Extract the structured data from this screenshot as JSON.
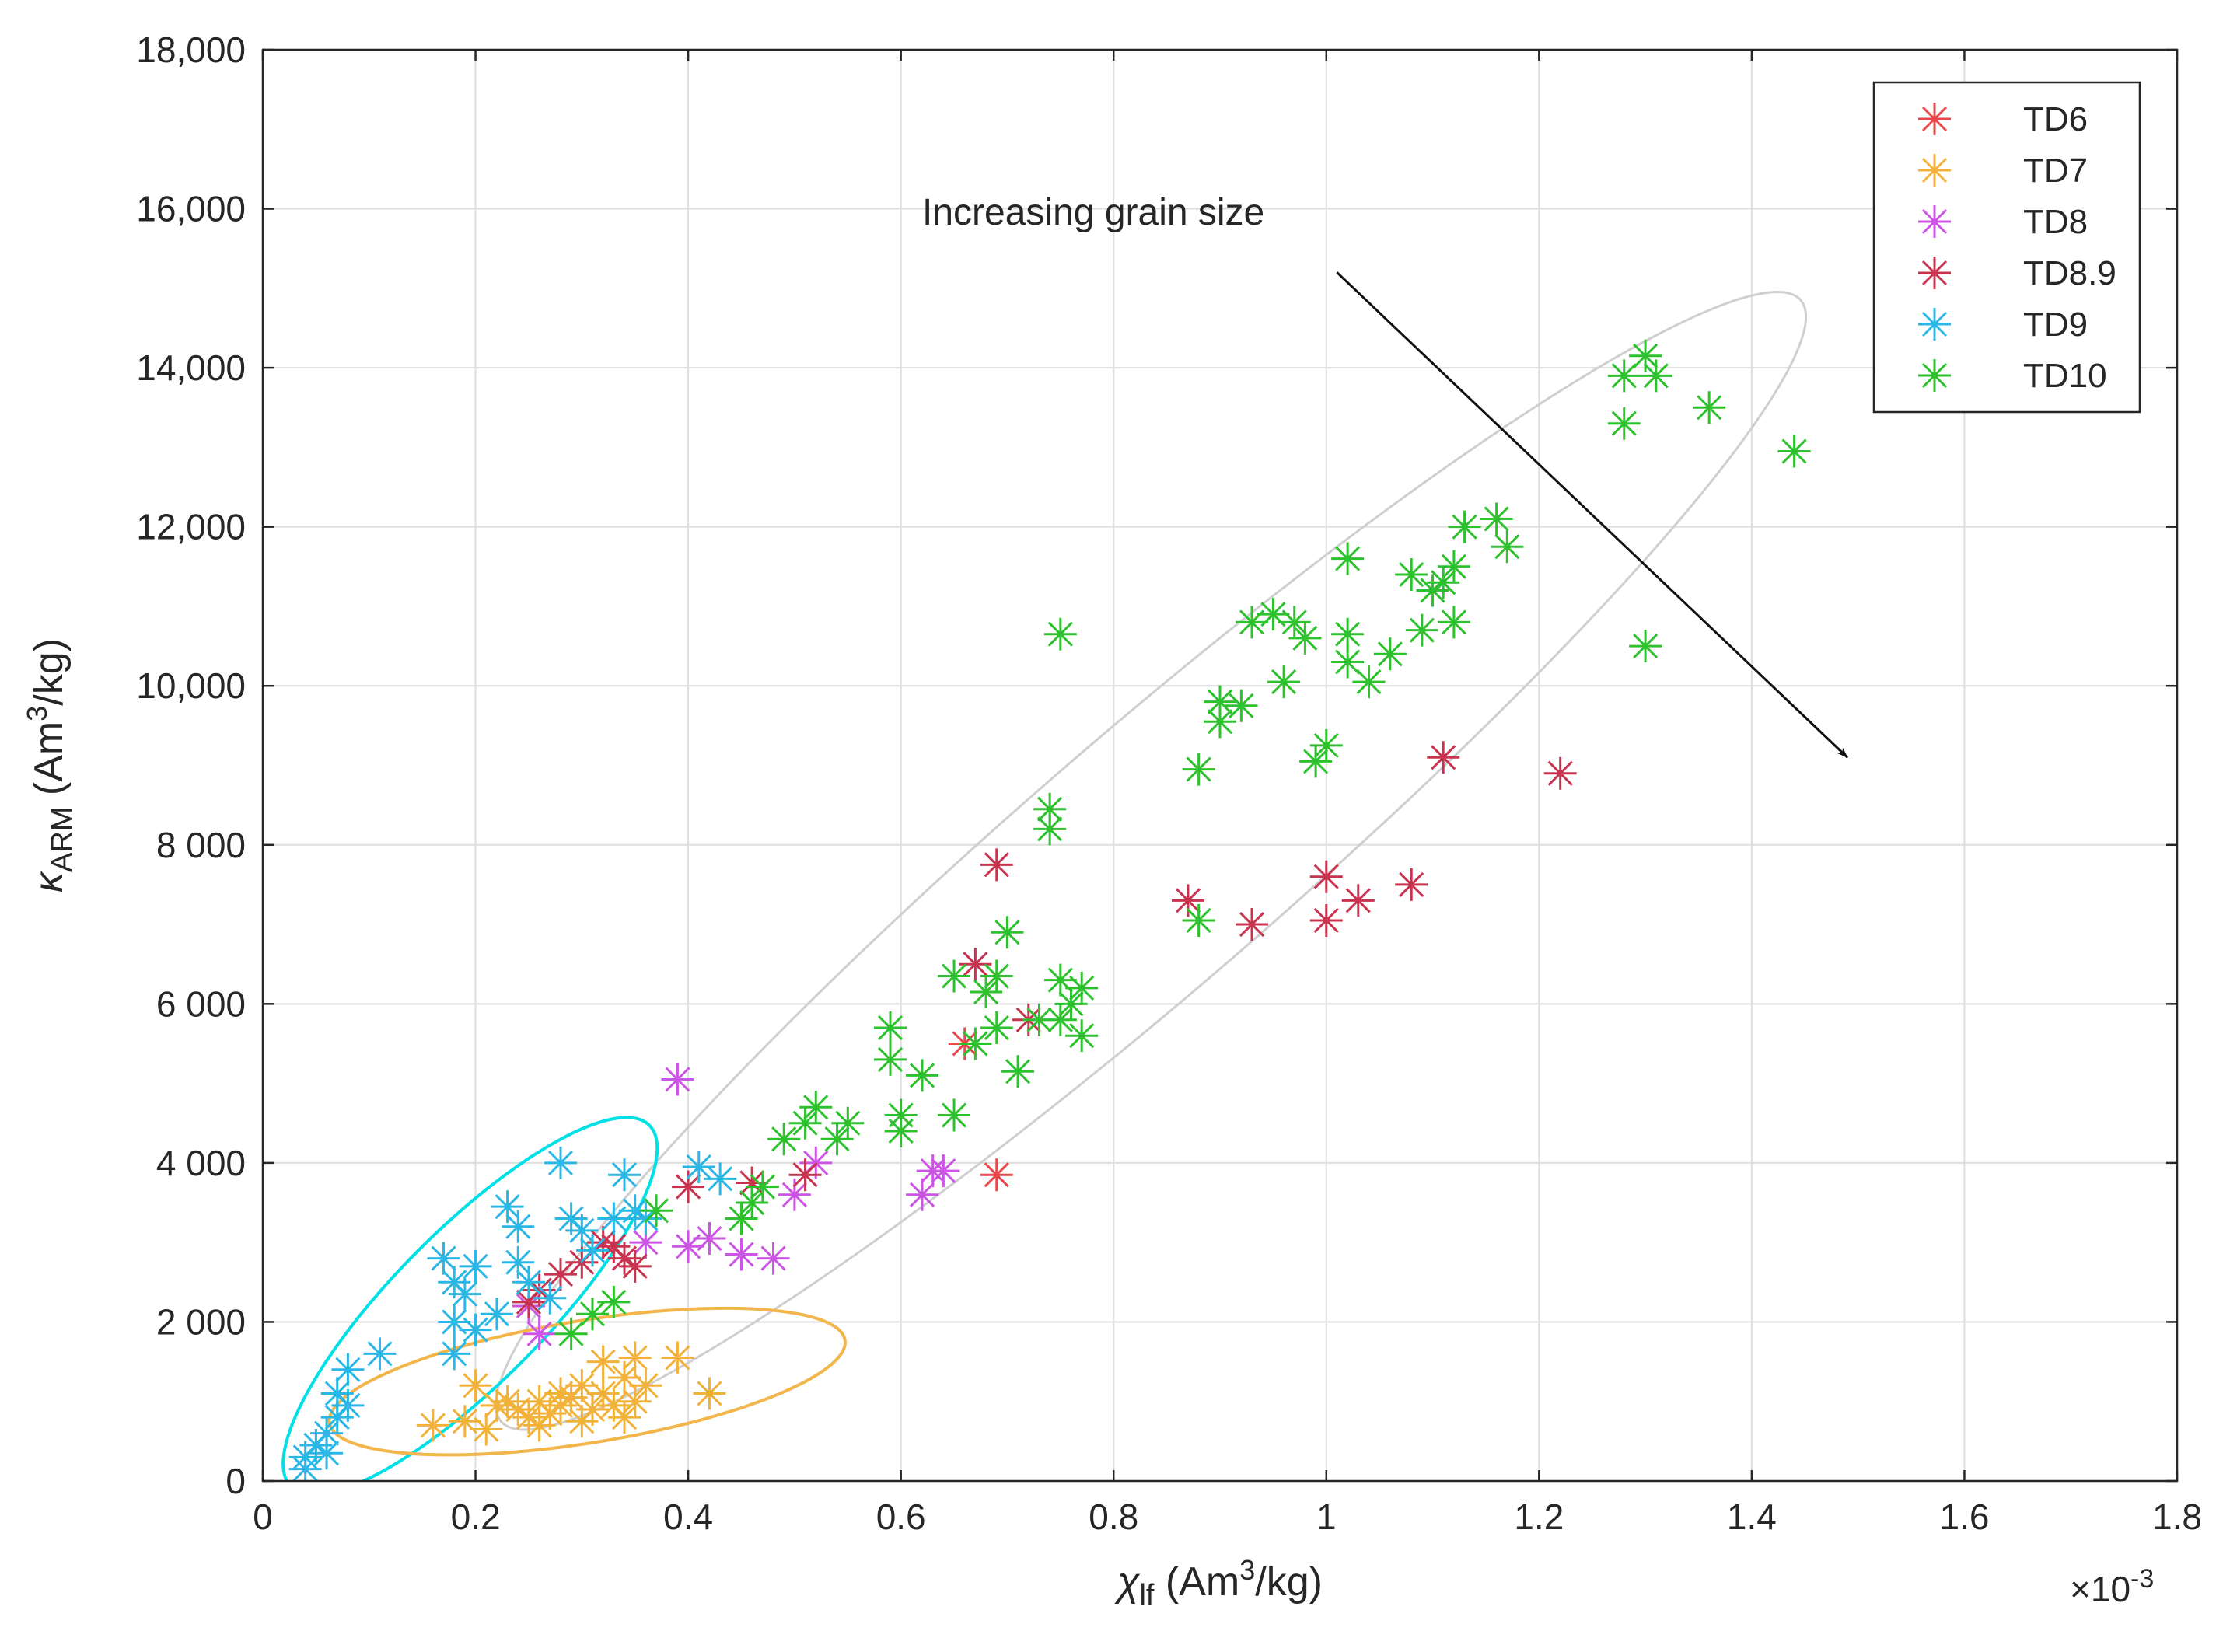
{
  "chart_data": {
    "type": "scatter",
    "title": "",
    "xlabel": {
      "symbol": "χ",
      "sub": "lf",
      "unit_pre": " (Am",
      "unit_sup": "3",
      "unit_post": "/kg)"
    },
    "ylabel": {
      "symbol": "κ",
      "sub": "ARM",
      "unit_pre": " (Am",
      "unit_sup": "3",
      "unit_post": "/kg)"
    },
    "x_exponent_label": {
      "times": "×",
      "base": "10",
      "exp": "-3"
    },
    "xlim": [
      0,
      1.8
    ],
    "ylim": [
      0,
      18000
    ],
    "x_scale": 0.001,
    "grid": true,
    "legend_position": "top-right",
    "xticks": [
      0,
      0.2,
      0.4,
      0.6,
      0.8,
      1,
      1.2,
      1.4,
      1.6,
      1.8
    ],
    "xtick_labels": [
      "0",
      "0.2",
      "0.4",
      "0.6",
      "0.8",
      "1",
      "1.2",
      "1.4",
      "1.6",
      "1.8"
    ],
    "yticks": [
      0,
      2000,
      4000,
      6000,
      8000,
      10000,
      12000,
      14000,
      16000,
      18000
    ],
    "ytick_labels": [
      "0",
      "2 000",
      "4 000",
      "6 000",
      "8 000",
      "10,000",
      "12,000",
      "14,000",
      "16,000",
      "18,000"
    ],
    "annotation": {
      "text": "Increasing grain size",
      "arrow_from": [
        1.01,
        15200
      ],
      "arrow_to": [
        1.49,
        9100
      ],
      "text_at": [
        0.62,
        15800
      ]
    },
    "ellipses": [
      {
        "color": "#cfcfcf",
        "center": [
          0.835,
          7800
        ],
        "half_axis_1": [
          0.615,
          6950
        ],
        "half_axis_2": [
          -0.035,
          1700
        ]
      },
      {
        "color": "#00e0e6",
        "center": [
          0.195,
          2200
        ],
        "half_axis_1": [
          0.17,
          2250
        ],
        "half_axis_2": [
          -0.045,
          750
        ]
      },
      {
        "color": "#f2b64d",
        "center": [
          0.305,
          1250
        ],
        "half_axis_1": [
          0.24,
          600
        ],
        "half_axis_2": [
          -0.035,
          700
        ]
      }
    ],
    "series": [
      {
        "name": "TD6",
        "color": "#e8474b",
        "points": [
          [
            0.69,
            3850
          ],
          [
            0.66,
            5500
          ]
        ]
      },
      {
        "name": "TD7",
        "color": "#f2b23a",
        "points": [
          [
            0.16,
            700
          ],
          [
            0.19,
            750
          ],
          [
            0.2,
            1200
          ],
          [
            0.21,
            650
          ],
          [
            0.22,
            950
          ],
          [
            0.23,
            1000
          ],
          [
            0.24,
            900
          ],
          [
            0.25,
            800
          ],
          [
            0.26,
            700
          ],
          [
            0.26,
            1000
          ],
          [
            0.27,
            850
          ],
          [
            0.28,
            1100
          ],
          [
            0.28,
            950
          ],
          [
            0.29,
            1050
          ],
          [
            0.3,
            750
          ],
          [
            0.3,
            1200
          ],
          [
            0.31,
            900
          ],
          [
            0.32,
            1100
          ],
          [
            0.32,
            1500
          ],
          [
            0.33,
            950
          ],
          [
            0.34,
            1300
          ],
          [
            0.34,
            800
          ],
          [
            0.35,
            1000
          ],
          [
            0.35,
            1550
          ],
          [
            0.36,
            1200
          ],
          [
            0.39,
            1550
          ],
          [
            0.42,
            1100
          ]
        ]
      },
      {
        "name": "TD8",
        "color": "#cc55e6",
        "points": [
          [
            0.25,
            2200
          ],
          [
            0.26,
            1850
          ],
          [
            0.36,
            3000
          ],
          [
            0.39,
            5050
          ],
          [
            0.4,
            2950
          ],
          [
            0.42,
            3050
          ],
          [
            0.45,
            2850
          ],
          [
            0.48,
            2800
          ],
          [
            0.5,
            3600
          ],
          [
            0.52,
            4000
          ],
          [
            0.62,
            3600
          ],
          [
            0.63,
            3900
          ],
          [
            0.64,
            3900
          ]
        ]
      },
      {
        "name": "TD8.9",
        "color": "#c8344f",
        "points": [
          [
            0.25,
            2250
          ],
          [
            0.26,
            2400
          ],
          [
            0.28,
            2600
          ],
          [
            0.3,
            2750
          ],
          [
            0.32,
            3000
          ],
          [
            0.33,
            2950
          ],
          [
            0.34,
            2800
          ],
          [
            0.35,
            2700
          ],
          [
            0.4,
            3700
          ],
          [
            0.46,
            3750
          ],
          [
            0.51,
            3850
          ],
          [
            0.67,
            6500
          ],
          [
            0.69,
            7750
          ],
          [
            0.72,
            5800
          ],
          [
            0.87,
            7300
          ],
          [
            0.93,
            7000
          ],
          [
            1.0,
            7600
          ],
          [
            1.0,
            7050
          ],
          [
            1.03,
            7300
          ],
          [
            1.08,
            7500
          ],
          [
            1.11,
            9100
          ],
          [
            1.22,
            8900
          ]
        ]
      },
      {
        "name": "TD9",
        "color": "#2ab7e6",
        "points": [
          [
            0.04,
            150
          ],
          [
            0.04,
            300
          ],
          [
            0.05,
            450
          ],
          [
            0.06,
            600
          ],
          [
            0.06,
            350
          ],
          [
            0.07,
            800
          ],
          [
            0.07,
            1100
          ],
          [
            0.08,
            1400
          ],
          [
            0.08,
            950
          ],
          [
            0.11,
            1600
          ],
          [
            0.17,
            2800
          ],
          [
            0.18,
            2500
          ],
          [
            0.18,
            2000
          ],
          [
            0.18,
            1600
          ],
          [
            0.19,
            2350
          ],
          [
            0.2,
            1900
          ],
          [
            0.2,
            2700
          ],
          [
            0.22,
            2100
          ],
          [
            0.23,
            3450
          ],
          [
            0.24,
            3200
          ],
          [
            0.24,
            2750
          ],
          [
            0.25,
            2500
          ],
          [
            0.27,
            2300
          ],
          [
            0.28,
            4000
          ],
          [
            0.29,
            3300
          ],
          [
            0.3,
            3150
          ],
          [
            0.31,
            2900
          ],
          [
            0.33,
            3300
          ],
          [
            0.34,
            3850
          ],
          [
            0.35,
            3400
          ],
          [
            0.36,
            3300
          ],
          [
            0.41,
            3950
          ],
          [
            0.43,
            3800
          ]
        ]
      },
      {
        "name": "TD10",
        "color": "#2dc22d",
        "points": [
          [
            0.29,
            1850
          ],
          [
            0.31,
            2100
          ],
          [
            0.33,
            2250
          ],
          [
            0.37,
            3400
          ],
          [
            0.45,
            3300
          ],
          [
            0.46,
            3500
          ],
          [
            0.47,
            3700
          ],
          [
            0.49,
            4300
          ],
          [
            0.51,
            4500
          ],
          [
            0.52,
            4700
          ],
          [
            0.54,
            4300
          ],
          [
            0.55,
            4500
          ],
          [
            0.59,
            5300
          ],
          [
            0.59,
            5700
          ],
          [
            0.6,
            4400
          ],
          [
            0.6,
            4600
          ],
          [
            0.62,
            5100
          ],
          [
            0.65,
            4600
          ],
          [
            0.65,
            6350
          ],
          [
            0.67,
            5500
          ],
          [
            0.68,
            6150
          ],
          [
            0.69,
            5700
          ],
          [
            0.69,
            6350
          ],
          [
            0.7,
            6900
          ],
          [
            0.71,
            5150
          ],
          [
            0.73,
            5800
          ],
          [
            0.74,
            8200
          ],
          [
            0.74,
            8450
          ],
          [
            0.75,
            6300
          ],
          [
            0.75,
            5800
          ],
          [
            0.76,
            6000
          ],
          [
            0.77,
            6200
          ],
          [
            0.77,
            5600
          ],
          [
            0.75,
            10650
          ],
          [
            0.88,
            7050
          ],
          [
            0.88,
            8950
          ],
          [
            0.9,
            9550
          ],
          [
            0.9,
            9800
          ],
          [
            0.92,
            9750
          ],
          [
            0.93,
            10800
          ],
          [
            0.95,
            10900
          ],
          [
            0.96,
            10050
          ],
          [
            0.97,
            10800
          ],
          [
            0.98,
            10600
          ],
          [
            0.99,
            9050
          ],
          [
            1.0,
            9250
          ],
          [
            1.02,
            10300
          ],
          [
            1.02,
            10650
          ],
          [
            1.02,
            11600
          ],
          [
            1.04,
            10050
          ],
          [
            1.06,
            10400
          ],
          [
            1.08,
            11400
          ],
          [
            1.09,
            10700
          ],
          [
            1.1,
            11200
          ],
          [
            1.11,
            11300
          ],
          [
            1.12,
            10800
          ],
          [
            1.12,
            11500
          ],
          [
            1.13,
            12000
          ],
          [
            1.16,
            12100
          ],
          [
            1.17,
            11750
          ],
          [
            1.28,
            13900
          ],
          [
            1.28,
            13300
          ],
          [
            1.3,
            14150
          ],
          [
            1.31,
            13900
          ],
          [
            1.3,
            10500
          ],
          [
            1.36,
            13500
          ],
          [
            1.44,
            12950
          ]
        ]
      }
    ]
  }
}
